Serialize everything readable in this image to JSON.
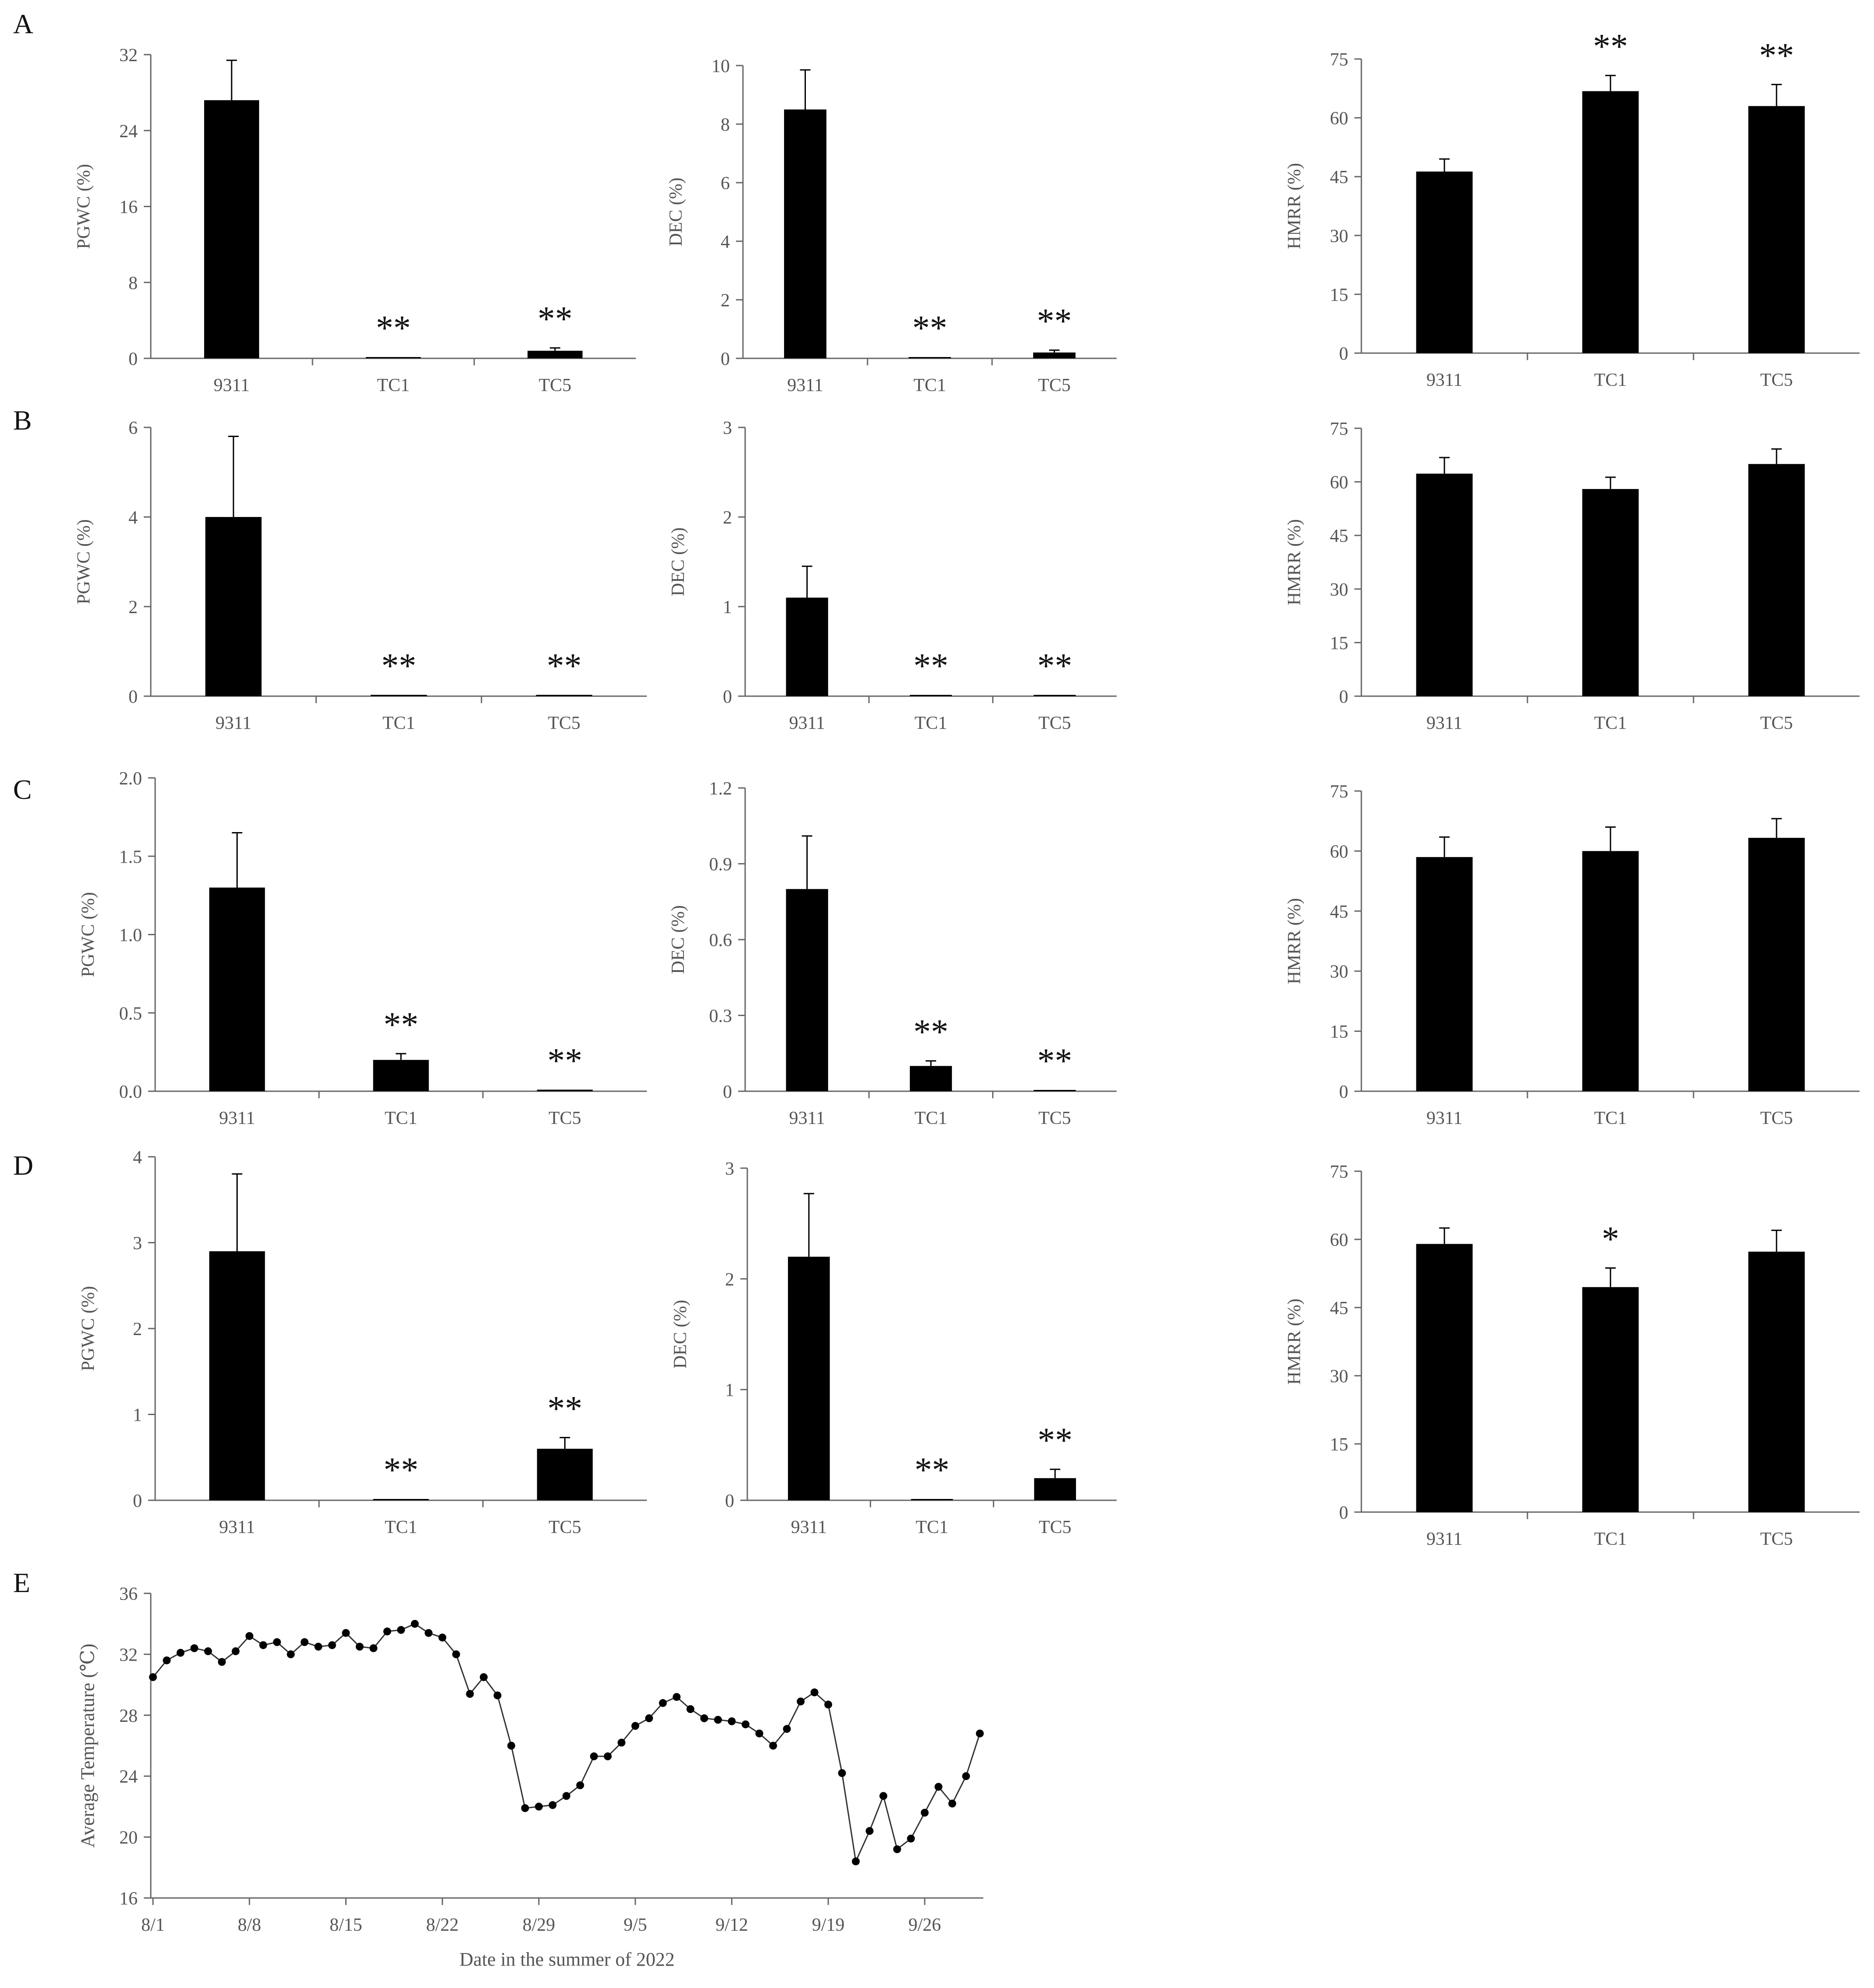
{
  "panel_letters": [
    "A",
    "B",
    "C",
    "D",
    "E"
  ],
  "chart_data": [
    {
      "panel": "A",
      "type": "bar",
      "ylabel": "PGWC (%)",
      "categories": [
        "9311",
        "TC1",
        "TC5"
      ],
      "values": [
        27.2,
        0.1,
        0.8
      ],
      "errors": [
        4.2,
        0,
        0.3
      ],
      "significance": [
        "",
        "**",
        "**"
      ],
      "ylim": [
        0,
        32
      ],
      "yticks": [
        "0",
        "8",
        "16",
        "24",
        "32"
      ]
    },
    {
      "panel": "A",
      "type": "bar",
      "ylabel": "DEC (%)",
      "categories": [
        "9311",
        "TC1",
        "TC5"
      ],
      "values": [
        8.5,
        0.02,
        0.2
      ],
      "errors": [
        1.35,
        0,
        0.08
      ],
      "significance": [
        "",
        "**",
        "**"
      ],
      "ylim": [
        0,
        10
      ],
      "yticks": [
        "0",
        "2",
        "4",
        "6",
        "8",
        "10"
      ]
    },
    {
      "panel": "A",
      "type": "bar",
      "ylabel": "HMRR (%)",
      "categories": [
        "9311",
        "TC1",
        "TC5"
      ],
      "values": [
        46.3,
        66.8,
        63
      ],
      "errors": [
        3.2,
        4,
        5.5
      ],
      "significance": [
        "",
        "**",
        "**"
      ],
      "ylim": [
        0,
        75
      ],
      "yticks": [
        "0",
        "15",
        "30",
        "45",
        "60",
        "75"
      ]
    },
    {
      "panel": "B",
      "type": "bar",
      "ylabel": "PGWC (%)",
      "categories": [
        "9311",
        "TC1",
        "TC5"
      ],
      "values": [
        4,
        0.03,
        0.03
      ],
      "errors": [
        1.8,
        0,
        0
      ],
      "significance": [
        "",
        "**",
        "**"
      ],
      "ylim": [
        0,
        6
      ],
      "yticks": [
        "0",
        "2",
        "4",
        "6"
      ]
    },
    {
      "panel": "B",
      "type": "bar",
      "ylabel": "DEC (%)",
      "categories": [
        "9311",
        "TC1",
        "TC5"
      ],
      "values": [
        1.1,
        0.01,
        0.01
      ],
      "errors": [
        0.35,
        0,
        0
      ],
      "significance": [
        "",
        "**",
        "**"
      ],
      "ylim": [
        0,
        3
      ],
      "yticks": [
        "0",
        "1",
        "2",
        "3"
      ]
    },
    {
      "panel": "B",
      "type": "bar",
      "ylabel": "HMRR (%)",
      "categories": [
        "9311",
        "TC1",
        "TC5"
      ],
      "values": [
        62.3,
        58,
        65
      ],
      "errors": [
        4.5,
        3.3,
        4.2
      ],
      "significance": [
        "",
        "",
        ""
      ],
      "ylim": [
        0,
        75
      ],
      "yticks": [
        "0",
        "15",
        "30",
        "45",
        "60",
        "75"
      ]
    },
    {
      "panel": "C",
      "type": "bar",
      "ylabel": "PGWC (%)",
      "categories": [
        "9311",
        "TC1",
        "TC5"
      ],
      "values": [
        1.3,
        0.2,
        0.01
      ],
      "errors": [
        0.35,
        0.04,
        0
      ],
      "significance": [
        "",
        "**",
        "**"
      ],
      "ylim": [
        0,
        2.0
      ],
      "yticks": [
        "0.0",
        "0.5",
        "1.0",
        "1.5",
        "2.0"
      ]
    },
    {
      "panel": "C",
      "type": "bar",
      "ylabel": "DEC (%)",
      "categories": [
        "9311",
        "TC1",
        "TC5"
      ],
      "values": [
        0.8,
        0.1,
        0.002
      ],
      "errors": [
        0.21,
        0.02,
        0
      ],
      "significance": [
        "",
        "**",
        "**"
      ],
      "ylim": [
        0,
        1.2
      ],
      "yticks": [
        "0",
        "0.3",
        "0.6",
        "0.9",
        "1.2"
      ]
    },
    {
      "panel": "C",
      "type": "bar",
      "ylabel": "HMRR (%)",
      "categories": [
        "9311",
        "TC1",
        "TC5"
      ],
      "values": [
        58.5,
        60,
        63.3
      ],
      "errors": [
        5,
        6,
        4.8
      ],
      "significance": [
        "",
        "",
        ""
      ],
      "ylim": [
        0,
        75
      ],
      "yticks": [
        "0",
        "15",
        "30",
        "45",
        "60",
        "75"
      ]
    },
    {
      "panel": "D",
      "type": "bar",
      "ylabel": "PGWC (%)",
      "categories": [
        "9311",
        "TC1",
        "TC5"
      ],
      "values": [
        2.9,
        0.01,
        0.6
      ],
      "errors": [
        0.9,
        0,
        0.13
      ],
      "significance": [
        "",
        "**",
        "**"
      ],
      "ylim": [
        0,
        4
      ],
      "yticks": [
        "0",
        "1",
        "2",
        "3",
        "4"
      ]
    },
    {
      "panel": "D",
      "type": "bar",
      "ylabel": "DEC (%)",
      "categories": [
        "9311",
        "TC1",
        "TC5"
      ],
      "values": [
        2.2,
        0.01,
        0.2
      ],
      "errors": [
        0.57,
        0,
        0.08
      ],
      "significance": [
        "",
        "**",
        "**"
      ],
      "ylim": [
        0,
        3
      ],
      "yticks": [
        "0",
        "1",
        "2",
        "3"
      ]
    },
    {
      "panel": "D",
      "type": "bar",
      "ylabel": "HMRR (%)",
      "categories": [
        "9311",
        "TC1",
        "TC5"
      ],
      "values": [
        59,
        49.5,
        57.3
      ],
      "errors": [
        3.5,
        4.2,
        4.7
      ],
      "significance": [
        "",
        "*",
        ""
      ],
      "ylim": [
        0,
        75
      ],
      "yticks": [
        "0",
        "15",
        "30",
        "45",
        "60",
        "75"
      ]
    },
    {
      "panel": "E",
      "type": "line",
      "xlabel": "Date in the summer of 2022",
      "ylabel": "Average Temperature (℃)",
      "ylim": [
        16,
        36
      ],
      "yticks": [
        "16",
        "20",
        "24",
        "28",
        "32",
        "36"
      ],
      "xtick_labels": [
        "8/1",
        "8/8",
        "8/15",
        "8/22",
        "8/29",
        "9/5",
        "9/12",
        "9/19",
        "9/26"
      ],
      "x": [
        "8/1",
        "8/2",
        "8/3",
        "8/4",
        "8/5",
        "8/6",
        "8/7",
        "8/8",
        "8/9",
        "8/10",
        "8/11",
        "8/12",
        "8/13",
        "8/14",
        "8/15",
        "8/16",
        "8/17",
        "8/18",
        "8/19",
        "8/20",
        "8/21",
        "8/22",
        "8/23",
        "8/24",
        "8/25",
        "8/26",
        "8/27",
        "8/28",
        "8/29",
        "8/30",
        "8/31",
        "9/1",
        "9/2",
        "9/3",
        "9/4",
        "9/5",
        "9/6",
        "9/7",
        "9/8",
        "9/9",
        "9/10",
        "9/11",
        "9/12",
        "9/13",
        "9/14",
        "9/15",
        "9/16",
        "9/17",
        "9/18",
        "9/19",
        "9/20",
        "9/21",
        "9/22",
        "9/23",
        "9/24",
        "9/25",
        "9/26",
        "9/27",
        "9/28",
        "9/29",
        "9/30"
      ],
      "values": [
        30.5,
        31.6,
        32.1,
        32.4,
        32.2,
        31.5,
        32.2,
        33.2,
        32.6,
        32.8,
        32,
        32.8,
        32.5,
        32.6,
        33.4,
        32.5,
        32.4,
        33.5,
        33.6,
        34,
        33.4,
        33.1,
        32,
        29.4,
        30.5,
        29.3,
        26,
        21.9,
        22,
        22.1,
        22.7,
        23.4,
        25.3,
        25.3,
        26.2,
        27.3,
        27.8,
        28.8,
        29.2,
        28.4,
        27.8,
        27.7,
        27.6,
        27.4,
        26.8,
        26,
        27.1,
        28.9,
        29.5,
        28.7,
        24.2,
        18.4,
        20.4,
        22.7,
        19.2,
        19.9,
        21.6,
        23.3,
        22.2,
        24,
        26.8
      ]
    }
  ]
}
